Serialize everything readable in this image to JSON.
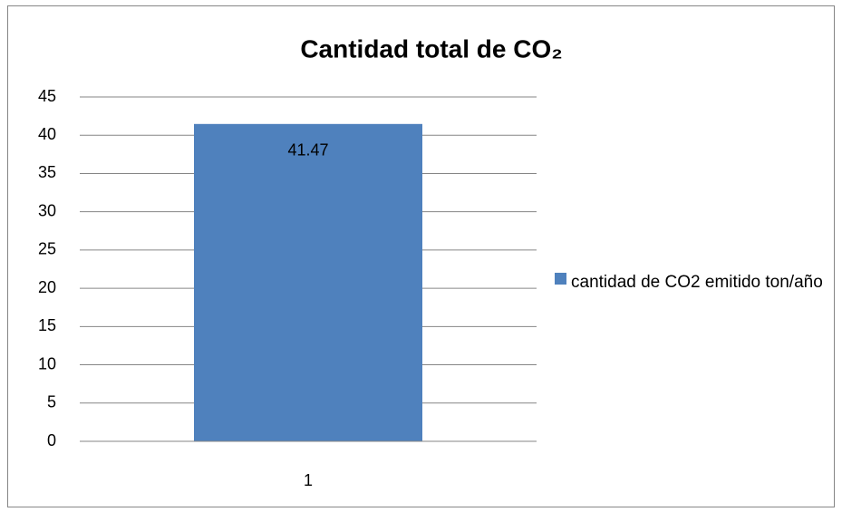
{
  "chart_data": {
    "type": "bar",
    "title": "Cantidad total de CO₂",
    "categories": [
      "1"
    ],
    "series": [
      {
        "name": "cantidad de CO2 emitido ton/año",
        "color": "#4f81bd",
        "values": [
          41.47
        ]
      }
    ],
    "ylim": [
      0,
      45
    ],
    "yticks": [
      0,
      5,
      10,
      15,
      20,
      25,
      30,
      35,
      40,
      45
    ],
    "grid": true,
    "legend": "right"
  }
}
